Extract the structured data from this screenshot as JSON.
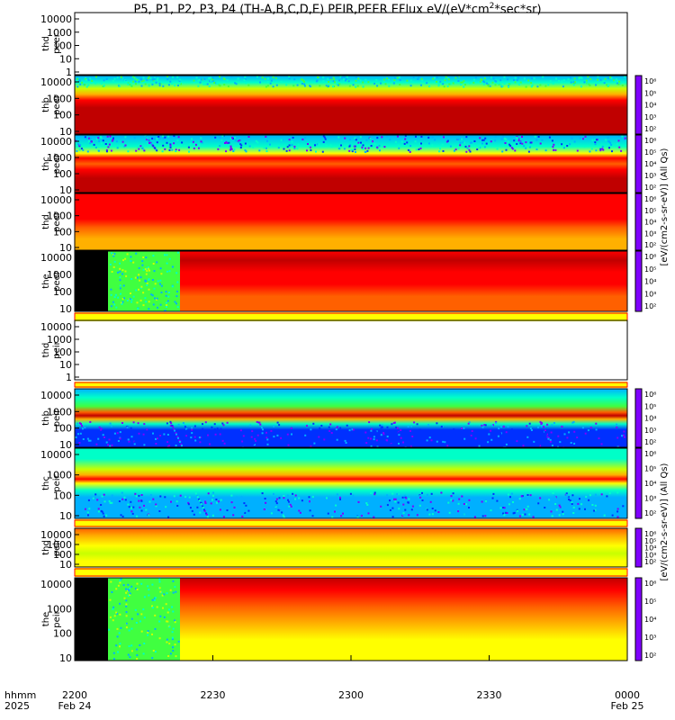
{
  "title": {
    "prefix": "P5, P1, P2, P3, P4 (TH-A,B,C,D,E) PEIR,PEER EFlux eV/(eV*cm",
    "sup1": "2",
    "suffix": "*sec*sr)"
  },
  "x_axis": {
    "row1_label": "hhmm",
    "row2_label": "2025",
    "ticks": [
      {
        "hhmm": "2200",
        "date": "Feb 24"
      },
      {
        "hhmm": "2230",
        "date": ""
      },
      {
        "hhmm": "2300",
        "date": ""
      },
      {
        "hhmm": "2330",
        "date": ""
      },
      {
        "hhmm": "0000",
        "date": "Feb 25"
      }
    ]
  },
  "colorbar_label_peer": "[eV/(cm2-s-sr-eV)] (All Qs)",
  "colorbar_label_peir": "[eV/(cm2-s-sr-eV)] (All Qs)",
  "colorbar_ticks": [
    "10²",
    "10³",
    "10⁴",
    "10⁵",
    "10⁶"
  ],
  "colors": {
    "black": "#000000",
    "white": "#ffffff",
    "spectrum": [
      "#7f00ff",
      "#0030ff",
      "#00b0ff",
      "#00ffc8",
      "#40ff40",
      "#c8ff00",
      "#ffff00",
      "#ffb000",
      "#ff6000",
      "#ff0000",
      "#c00000"
    ]
  },
  "chart_data": {
    "type": "heatmap",
    "x_range": [
      "2200",
      "0000"
    ],
    "panels": [
      {
        "probe": "thd",
        "species": "peer",
        "panel_label": [
          "thd",
          "peer"
        ],
        "y_ticks": [
          "10000",
          "1000",
          "100",
          "10",
          "1"
        ],
        "ylim": [
          1,
          20000
        ],
        "log_y": true,
        "has_data": false
      },
      {
        "probe": "thb",
        "species": "peer",
        "panel_label": [
          "thb",
          "peer"
        ],
        "y_ticks": [
          "10000",
          "1000",
          "100",
          "10"
        ],
        "ylim": [
          10,
          20000
        ],
        "log_y": true,
        "has_data": true
      },
      {
        "probe": "thc",
        "species": "peer",
        "panel_label": [
          "thc",
          "peer"
        ],
        "y_ticks": [
          "10000",
          "1000",
          "100",
          "10"
        ],
        "ylim": [
          10,
          20000
        ],
        "log_y": true,
        "has_data": true
      },
      {
        "probe": "thd",
        "species": "peer",
        "panel_label": [
          "thd",
          "peer"
        ],
        "y_ticks": [
          "10000",
          "1000",
          "100",
          "10"
        ],
        "ylim": [
          10,
          20000
        ],
        "log_y": true,
        "has_data": true
      },
      {
        "probe": "the",
        "species": "peer",
        "panel_label": [
          "the",
          "peer"
        ],
        "y_ticks": [
          "10000",
          "1000",
          "100",
          "10"
        ],
        "ylim": [
          10,
          20000
        ],
        "log_y": true,
        "has_data": true
      },
      {
        "probe": "thd",
        "species": "peir",
        "panel_label": [
          "thd",
          "peir"
        ],
        "y_ticks": [
          "10000",
          "1000",
          "100",
          "10",
          "1"
        ],
        "ylim": [
          1,
          20000
        ],
        "log_y": true,
        "has_data": false
      },
      {
        "probe": "thb",
        "species": "peir",
        "panel_label": [
          "thb",
          "peir"
        ],
        "y_ticks": [
          "10000",
          "1000",
          "100",
          "10"
        ],
        "ylim": [
          10,
          20000
        ],
        "log_y": true,
        "has_data": true
      },
      {
        "probe": "thc",
        "species": "peir",
        "panel_label": [
          "thc",
          "peir"
        ],
        "y_ticks": [
          "10000",
          "1000",
          "100",
          "10"
        ],
        "ylim": [
          10,
          20000
        ],
        "log_y": true,
        "has_data": true
      },
      {
        "probe": "thd",
        "species": "peir",
        "panel_label": [
          "thd",
          "peir"
        ],
        "y_ticks": [
          "10000",
          "1000",
          "100",
          "10"
        ],
        "ylim": [
          10,
          20000
        ],
        "log_y": true,
        "has_data": true
      },
      {
        "probe": "the",
        "species": "peir",
        "panel_label": [
          "the",
          "peir"
        ],
        "y_ticks": [
          "10000",
          "1000",
          "100",
          "10"
        ],
        "ylim": [
          10,
          20000
        ],
        "log_y": true,
        "has_data": true
      }
    ]
  }
}
